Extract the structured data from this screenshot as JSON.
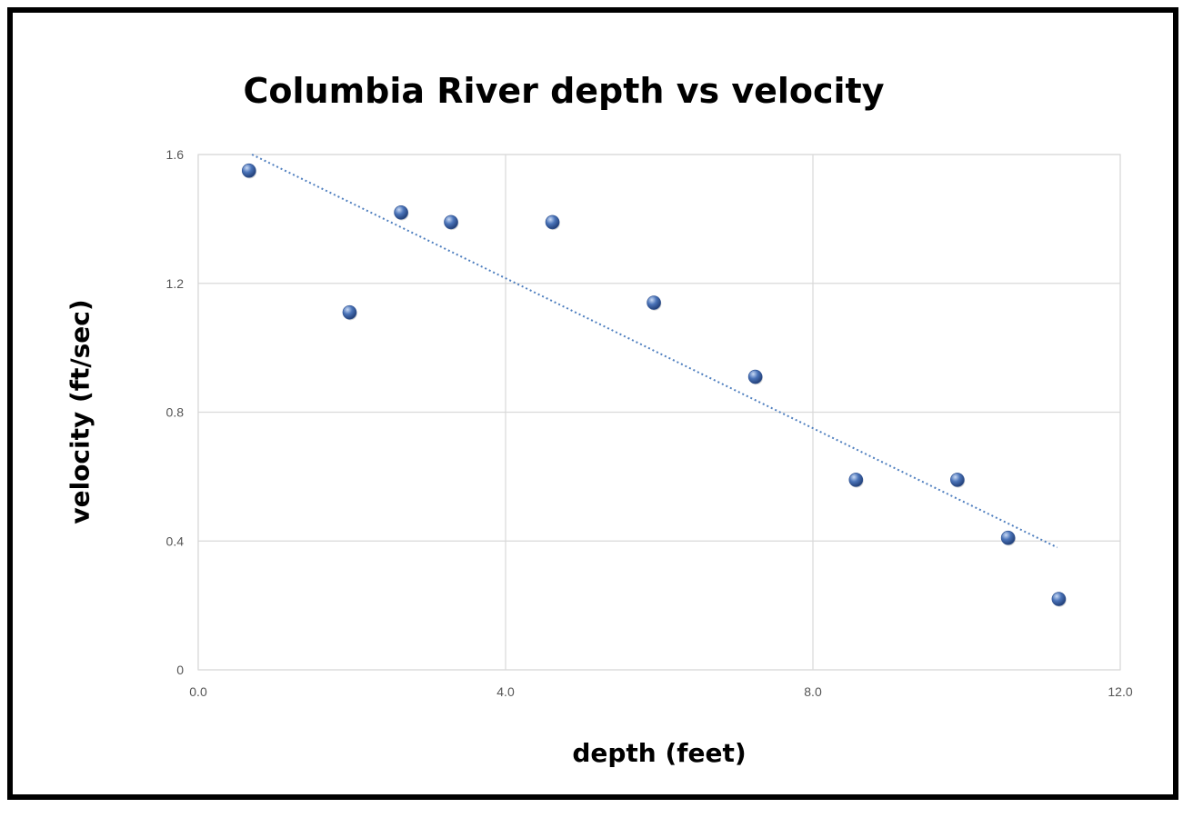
{
  "chart_data": {
    "type": "scatter",
    "title": "Columbia River depth vs velocity",
    "xlabel": "depth (feet)",
    "ylabel": "velocity (ft/sec)",
    "xlim": [
      0,
      12
    ],
    "ylim": [
      0,
      1.6
    ],
    "x_ticks": [
      "0.0",
      "4.0",
      "8.0",
      "12.0"
    ],
    "y_ticks": [
      "0",
      "0.4",
      "0.8",
      "1.2",
      "1.6"
    ],
    "grid": true,
    "legend": "none",
    "series": [
      {
        "points": [
          {
            "x": 0.66,
            "y": 1.55
          },
          {
            "x": 1.97,
            "y": 1.11
          },
          {
            "x": 2.64,
            "y": 1.42
          },
          {
            "x": 3.29,
            "y": 1.39
          },
          {
            "x": 4.61,
            "y": 1.39
          },
          {
            "x": 5.93,
            "y": 1.14
          },
          {
            "x": 7.25,
            "y": 0.91
          },
          {
            "x": 8.56,
            "y": 0.59
          },
          {
            "x": 9.88,
            "y": 0.59
          },
          {
            "x": 10.54,
            "y": 0.41
          },
          {
            "x": 11.2,
            "y": 0.22
          }
        ]
      }
    ],
    "trendline": {
      "type": "linear",
      "from": {
        "x": 0.7,
        "y": 1.6
      },
      "to": {
        "x": 11.18,
        "y": 0.38
      },
      "style": "dotted"
    },
    "colors": {
      "marker": "#4a73b8",
      "trendline": "#4f7fbf",
      "grid": "#d9d9d9"
    }
  }
}
